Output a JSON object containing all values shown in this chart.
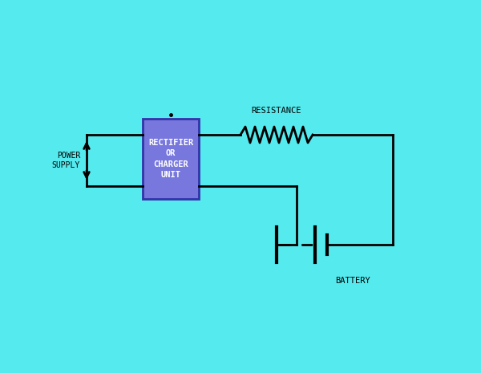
{
  "bg_color": "#55EAEE",
  "line_color": "black",
  "box_color": "#7777DD",
  "box_edge_color": "#3333AA",
  "box_text": "RECTIFIER\nOR\nCHARGER\nUNIT",
  "box_text_color": "white",
  "ps_label": "POWER\nSUPPLY",
  "resist_label": "RESISTANCE",
  "battery_label": "BATTERY",
  "lw": 2.0,
  "figw": 6.0,
  "figh": 4.65,
  "dpi": 100
}
